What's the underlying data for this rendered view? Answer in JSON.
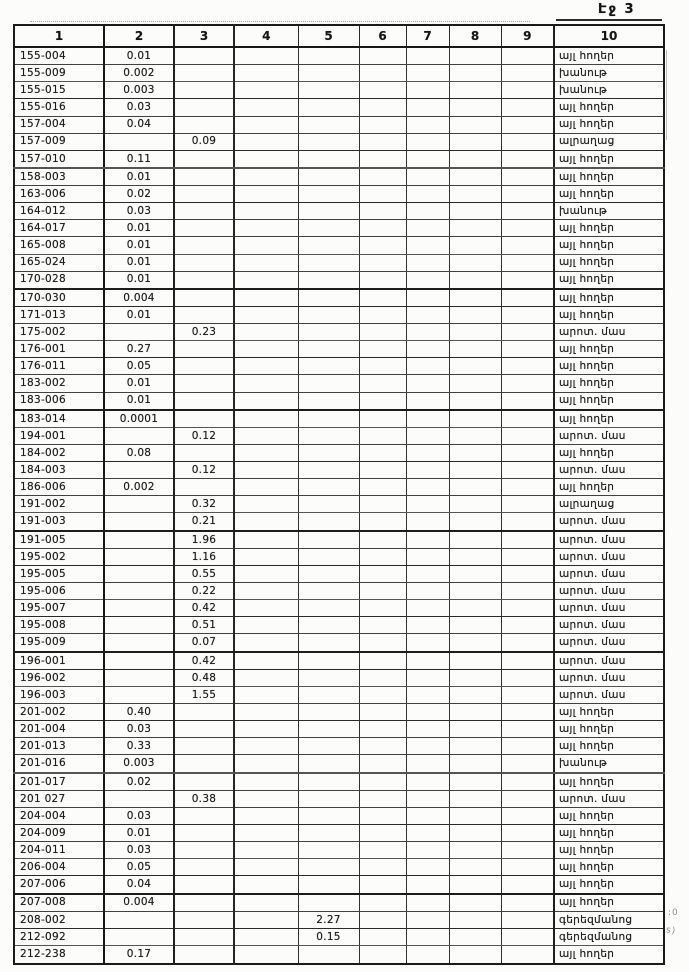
{
  "page_label": "Էջ 3",
  "margin_artifacts": [
    ":0",
    "s)"
  ],
  "table": {
    "headers": [
      "1",
      "2",
      "3",
      "4",
      "5",
      "6",
      "7",
      "8",
      "9",
      "10"
    ],
    "rows": [
      [
        "155-004",
        "0.01",
        "",
        "",
        "",
        "",
        "",
        "",
        "",
        "այլ հողեր"
      ],
      [
        "155-009",
        "0.002",
        "",
        "",
        "",
        "",
        "",
        "",
        "",
        "խանութ"
      ],
      [
        "155-015",
        "0.003",
        "",
        "",
        "",
        "",
        "",
        "",
        "",
        "խանութ"
      ],
      [
        "155-016",
        "0.03",
        "",
        "",
        "",
        "",
        "",
        "",
        "",
        "այլ հողեր"
      ],
      [
        "157-004",
        "0.04",
        "",
        "",
        "",
        "",
        "",
        "",
        "",
        "այլ հողեր"
      ],
      [
        "157-009",
        "",
        "0.09",
        "",
        "",
        "",
        "",
        "",
        "",
        "ալրաղաց"
      ],
      [
        "157-010",
        "0.11",
        "",
        "",
        "",
        "",
        "",
        "",
        "",
        "այլ հողեր"
      ],
      [
        "158-003",
        "0.01",
        "",
        "",
        "",
        "",
        "",
        "",
        "",
        "այլ հողեր"
      ],
      [
        "163-006",
        "0.02",
        "",
        "",
        "",
        "",
        "",
        "",
        "",
        "այլ հողեր"
      ],
      [
        "164-012",
        "0.03",
        "",
        "",
        "",
        "",
        "",
        "",
        "",
        "խանութ"
      ],
      [
        "164-017",
        "0.01",
        "",
        "",
        "",
        "",
        "",
        "",
        "",
        "այլ հողեր"
      ],
      [
        "165-008",
        "0.01",
        "",
        "",
        "",
        "",
        "",
        "",
        "",
        "այլ հողեր"
      ],
      [
        "165-024",
        "0.01",
        "",
        "",
        "",
        "",
        "",
        "",
        "",
        "այլ հողեր"
      ],
      [
        "170-028",
        "0.01",
        "",
        "",
        "",
        "",
        "",
        "",
        "",
        "այլ հողեր"
      ],
      [
        "170-030",
        "0.004",
        "",
        "",
        "",
        "",
        "",
        "",
        "",
        "այլ հողեր"
      ],
      [
        "171-013",
        "0.01",
        "",
        "",
        "",
        "",
        "",
        "",
        "",
        "այլ հողեր"
      ],
      [
        "175-002",
        "",
        "0.23",
        "",
        "",
        "",
        "",
        "",
        "",
        "արոտ. մաս"
      ],
      [
        "176-001",
        "0.27",
        "",
        "",
        "",
        "",
        "",
        "",
        "",
        "այլ հողեր"
      ],
      [
        "176-011",
        "0.05",
        "",
        "",
        "",
        "",
        "",
        "",
        "",
        "այլ հողեր"
      ],
      [
        "183-002",
        "0.01",
        "",
        "",
        "",
        "",
        "",
        "",
        "",
        "այլ հողեր"
      ],
      [
        "183-006",
        "0.01",
        "",
        "",
        "",
        "",
        "",
        "",
        "",
        "այլ հողեր"
      ],
      [
        "183-014",
        "0.0001",
        "",
        "",
        "",
        "",
        "",
        "",
        "",
        "այլ հողեր"
      ],
      [
        "194-001",
        "",
        "0.12",
        "",
        "",
        "",
        "",
        "",
        "",
        "արոտ. մաս"
      ],
      [
        "184-002",
        "0.08",
        "",
        "",
        "",
        "",
        "",
        "",
        "",
        "այլ հողեր"
      ],
      [
        "184-003",
        "",
        "0.12",
        "",
        "",
        "",
        "",
        "",
        "",
        "արոտ. մաս"
      ],
      [
        "186-006",
        "0.002",
        "",
        "",
        "",
        "",
        "",
        "",
        "",
        "այլ հողեր"
      ],
      [
        "191-002",
        "",
        "0.32",
        "",
        "",
        "",
        "",
        "",
        "",
        "ալրաղաց"
      ],
      [
        "191-003",
        "",
        "0.21",
        "",
        "",
        "",
        "",
        "",
        "",
        "արոտ. մաս"
      ],
      [
        "191-005",
        "",
        "1.96",
        "",
        "",
        "",
        "",
        "",
        "",
        "արոտ. մաս"
      ],
      [
        "195-002",
        "",
        "1.16",
        "",
        "",
        "",
        "",
        "",
        "",
        "արոտ. մաս"
      ],
      [
        "195-005",
        "",
        "0.55",
        "",
        "",
        "",
        "",
        "",
        "",
        "արոտ. մաս"
      ],
      [
        "195-006",
        "",
        "0.22",
        "",
        "",
        "",
        "",
        "",
        "",
        "արոտ. մաս"
      ],
      [
        "195-007",
        "",
        "0.42",
        "",
        "",
        "",
        "",
        "",
        "",
        "արոտ. մաս"
      ],
      [
        "195-008",
        "",
        "0.51",
        "",
        "",
        "",
        "",
        "",
        "",
        "արոտ. մաս"
      ],
      [
        "195-009",
        "",
        "0.07",
        "",
        "",
        "",
        "",
        "",
        "",
        "արոտ. մաս"
      ],
      [
        "196-001",
        "",
        "0.42",
        "",
        "",
        "",
        "",
        "",
        "",
        "արոտ. մաս"
      ],
      [
        "196-002",
        "",
        "0.48",
        "",
        "",
        "",
        "",
        "",
        "",
        "արոտ. մաս"
      ],
      [
        "196-003",
        "",
        "1.55",
        "",
        "",
        "",
        "",
        "",
        "",
        "արոտ. մաս"
      ],
      [
        "201-002",
        "0.40",
        "",
        "",
        "",
        "",
        "",
        "",
        "",
        "այլ հողեր"
      ],
      [
        "201-004",
        "0.03",
        "",
        "",
        "",
        "",
        "",
        "",
        "",
        "այլ հողեր"
      ],
      [
        "201-013",
        "0.33",
        "",
        "",
        "",
        "",
        "",
        "",
        "",
        "այլ հողեր"
      ],
      [
        "201-016",
        "0.003",
        "",
        "",
        "",
        "",
        "",
        "",
        "",
        "խանութ"
      ],
      [
        "201-017",
        "0.02",
        "",
        "",
        "",
        "",
        "",
        "",
        "",
        "այլ հողեր"
      ],
      [
        "201 027",
        "",
        "0.38",
        "",
        "",
        "",
        "",
        "",
        "",
        "արոտ. մաս"
      ],
      [
        "204-004",
        "0.03",
        "",
        "",
        "",
        "",
        "",
        "",
        "",
        "այլ հողեր"
      ],
      [
        "204-009",
        "0.01",
        "",
        "",
        "",
        "",
        "",
        "",
        "",
        "այլ հողեր"
      ],
      [
        "204-011",
        "0.03",
        "",
        "",
        "",
        "",
        "",
        "",
        "",
        "այլ հողեր"
      ],
      [
        "206-004",
        "0.05",
        "",
        "",
        "",
        "",
        "",
        "",
        "",
        "այլ հողեր"
      ],
      [
        "207-006",
        "0.04",
        "",
        "",
        "",
        "",
        "",
        "",
        "",
        "այլ հողեր"
      ],
      [
        "207-008",
        "0.004",
        "",
        "",
        "",
        "",
        "",
        "",
        "",
        "այլ հողեր"
      ],
      [
        "208-002",
        "",
        "",
        "",
        "2.27",
        "",
        "",
        "",
        "",
        "գերեզմանոց"
      ],
      [
        "212-092",
        "",
        "",
        "",
        "0.15",
        "",
        "",
        "",
        "",
        "գերեզմանոց"
      ],
      [
        "212-238",
        "0.17",
        "",
        "",
        "",
        "",
        "",
        "",
        "",
        "այլ հողեր"
      ]
    ]
  }
}
